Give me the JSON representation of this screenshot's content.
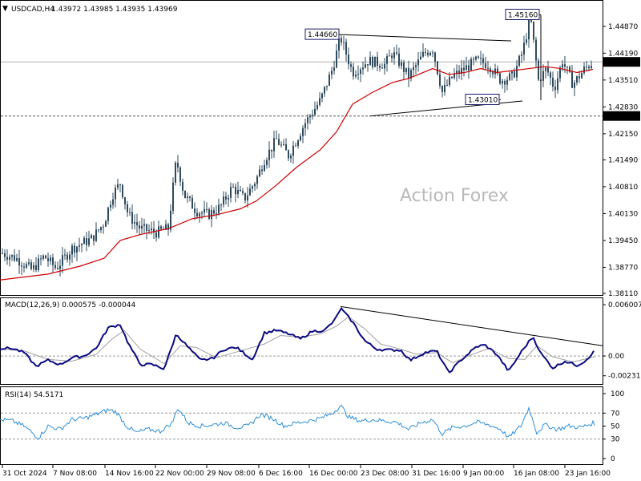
{
  "header": {
    "symbol": "USDCAD,H4",
    "ohlc": "1.43972 1.43985 1.43935 1.43969"
  },
  "watermark": "Action Forex",
  "colors": {
    "candle": "#2e4a5c",
    "ma": "#cc0000",
    "macd": "#0a0a80",
    "signal": "#a0a0a0",
    "rsi": "#2d8fd8",
    "grid": "#9a9a9a",
    "level_line": "#555555"
  },
  "chart_data": [
    {
      "type": "candlestick",
      "panel": "price",
      "title": "USDCAD,H4",
      "ylim": [
        1.3811,
        1.4515
      ],
      "y_ticks": [
        "1.44870",
        "1.44190",
        "1.43510",
        "1.42830",
        "1.42150",
        "1.41490",
        "1.40810",
        "1.40130",
        "1.39450",
        "1.38770",
        "1.38110"
      ],
      "x_ticks": [
        "31 Oct 2024",
        "7 Nov 08:00",
        "14 Nov 16:00",
        "22 Nov 00:00",
        "29 Nov 08:00",
        "6 Dec 16:00",
        "16 Dec 00:00",
        "23 Dec 08:00",
        "31 Dec 16:00",
        "9 Jan 00:00",
        "16 Jan 08:00",
        "23 Jan 16:00"
      ],
      "price_path": [
        [
          0,
          1.3915
        ],
        [
          20,
          1.39
        ],
        [
          40,
          1.387
        ],
        [
          55,
          1.3905
        ],
        [
          70,
          1.3875
        ],
        [
          90,
          1.3925
        ],
        [
          115,
          1.395
        ],
        [
          130,
          1.399
        ],
        [
          140,
          1.406
        ],
        [
          150,
          1.409
        ],
        [
          160,
          1.401
        ],
        [
          175,
          1.3975
        ],
        [
          195,
          1.3965
        ],
        [
          210,
          1.3975
        ],
        [
          220,
          1.415
        ],
        [
          230,
          1.406
        ],
        [
          245,
          1.402
        ],
        [
          260,
          1.401
        ],
        [
          275,
          1.403
        ],
        [
          290,
          1.408
        ],
        [
          305,
          1.405
        ],
        [
          320,
          1.41
        ],
        [
          330,
          1.415
        ],
        [
          345,
          1.42
        ],
        [
          360,
          1.416
        ],
        [
          380,
          1.424
        ],
        [
          400,
          1.43
        ],
        [
          415,
          1.438
        ],
        [
          425,
          1.446
        ],
        [
          440,
          1.437
        ],
        [
          460,
          1.44
        ],
        [
          480,
          1.439
        ],
        [
          490,
          1.442
        ],
        [
          510,
          1.436
        ],
        [
          530,
          1.442
        ],
        [
          540,
          1.443
        ],
        [
          552,
          1.432
        ],
        [
          565,
          1.436
        ],
        [
          580,
          1.438
        ],
        [
          595,
          1.44
        ],
        [
          610,
          1.439
        ],
        [
          625,
          1.435
        ],
        [
          640,
          1.436
        ],
        [
          652,
          1.442
        ],
        [
          662,
          1.451
        ],
        [
          672,
          1.435
        ],
        [
          682,
          1.438
        ],
        [
          692,
          1.433
        ],
        [
          702,
          1.44
        ],
        [
          715,
          1.434
        ],
        [
          730,
          1.438
        ],
        [
          740,
          1.4397
        ]
      ],
      "moving_average_path": [
        [
          0,
          1.3845
        ],
        [
          60,
          1.386
        ],
        [
          100,
          1.388
        ],
        [
          130,
          1.39
        ],
        [
          150,
          1.3945
        ],
        [
          175,
          1.396
        ],
        [
          210,
          1.3975
        ],
        [
          240,
          1.4
        ],
        [
          270,
          1.401
        ],
        [
          300,
          1.4025
        ],
        [
          320,
          1.4045
        ],
        [
          345,
          1.4085
        ],
        [
          370,
          1.413
        ],
        [
          400,
          1.4175
        ],
        [
          420,
          1.422
        ],
        [
          440,
          1.429
        ],
        [
          465,
          1.432
        ],
        [
          490,
          1.4345
        ],
        [
          510,
          1.4355
        ],
        [
          540,
          1.438
        ],
        [
          560,
          1.4365
        ],
        [
          580,
          1.437
        ],
        [
          600,
          1.438
        ],
        [
          620,
          1.437
        ],
        [
          640,
          1.4375
        ],
        [
          660,
          1.438
        ],
        [
          680,
          1.4385
        ],
        [
          700,
          1.438
        ],
        [
          720,
          1.437
        ],
        [
          740,
          1.4378
        ]
      ],
      "levels": [
        {
          "label": "1.44660",
          "value": 1.4466,
          "x": 425
        },
        {
          "label": "1.45160",
          "value": 1.4516,
          "x": 675
        },
        {
          "label": "1.43010",
          "value": 1.4301,
          "x": 625
        }
      ],
      "current_price": {
        "label": "1.43969",
        "value": 1.43969
      },
      "horizontal_level": {
        "label": "1.42600",
        "value": 1.426
      },
      "trendlines": [
        {
          "from": [
            425,
            1.4466
          ],
          "to": [
            638,
            1.445
          ]
        },
        {
          "from": [
            462,
            1.426
          ],
          "to": [
            652,
            1.4298
          ]
        }
      ]
    },
    {
      "type": "line",
      "panel": "macd",
      "title": "MACD(12,26,9) 0.000575 -0.000044",
      "ylim": [
        -0.003,
        0.0063
      ],
      "y_ticks": [
        {
          "label": "0.006007",
          "value": 0.006007
        },
        {
          "label": "0.00",
          "value": 0.0
        },
        {
          "label": "-0.002318",
          "value": -0.002318
        }
      ],
      "series": [
        {
          "name": "MACD",
          "path": [
            [
              0,
              0.0009
            ],
            [
              15,
              0.0009
            ],
            [
              30,
              0.0004
            ],
            [
              45,
              -0.0012
            ],
            [
              60,
              -0.0005
            ],
            [
              75,
              -0.001
            ],
            [
              90,
              -0.0002
            ],
            [
              105,
              0.0
            ],
            [
              120,
              0.0009
            ],
            [
              135,
              0.0033
            ],
            [
              150,
              0.0037
            ],
            [
              160,
              0.0015
            ],
            [
              175,
              -0.001
            ],
            [
              190,
              -0.001
            ],
            [
              205,
              -0.0015
            ],
            [
              220,
              0.0026
            ],
            [
              235,
              0.001
            ],
            [
              250,
              -0.0005
            ],
            [
              265,
              -0.0003
            ],
            [
              280,
              0.0008
            ],
            [
              295,
              0.001
            ],
            [
              315,
              -0.0004
            ],
            [
              330,
              0.0027
            ],
            [
              345,
              0.003
            ],
            [
              360,
              0.0026
            ],
            [
              375,
              0.002
            ],
            [
              390,
              0.0029
            ],
            [
              405,
              0.003
            ],
            [
              418,
              0.0042
            ],
            [
              425,
              0.0056
            ],
            [
              440,
              0.004
            ],
            [
              455,
              0.0018
            ],
            [
              470,
              0.0008
            ],
            [
              485,
              0.0007
            ],
            [
              500,
              0.0007
            ],
            [
              512,
              -0.0005
            ],
            [
              530,
              0.0004
            ],
            [
              545,
              0.0006
            ],
            [
              560,
              -0.002
            ],
            [
              575,
              -0.0005
            ],
            [
              595,
              0.0011
            ],
            [
              605,
              0.0013
            ],
            [
              620,
              0.0002
            ],
            [
              635,
              -0.0018
            ],
            [
              650,
              0.0004
            ],
            [
              665,
              0.0023
            ],
            [
              675,
              0.0003
            ],
            [
              690,
              -0.0014
            ],
            [
              705,
              -0.0006
            ],
            [
              720,
              -0.0011
            ],
            [
              730,
              -0.0006
            ],
            [
              742,
              0.0006
            ]
          ]
        },
        {
          "name": "Signal",
          "path": [
            [
              0,
              0.0008
            ],
            [
              30,
              0.0006
            ],
            [
              60,
              -0.0004
            ],
            [
              90,
              -0.0006
            ],
            [
              120,
              0.0002
            ],
            [
              140,
              0.002
            ],
            [
              155,
              0.003
            ],
            [
              175,
              0.0008
            ],
            [
              205,
              -0.0009
            ],
            [
              225,
              0.0012
            ],
            [
              245,
              0.001
            ],
            [
              270,
              -0.0002
            ],
            [
              300,
              0.0006
            ],
            [
              330,
              0.0014
            ],
            [
              350,
              0.0024
            ],
            [
              375,
              0.0022
            ],
            [
              400,
              0.0026
            ],
            [
              420,
              0.0035
            ],
            [
              435,
              0.0046
            ],
            [
              455,
              0.0032
            ],
            [
              475,
              0.0014
            ],
            [
              500,
              0.0008
            ],
            [
              520,
              0.0002
            ],
            [
              545,
              0.0004
            ],
            [
              565,
              -0.0008
            ],
            [
              590,
              0.0002
            ],
            [
              610,
              0.0009
            ],
            [
              635,
              -0.0003
            ],
            [
              655,
              -0.0004
            ],
            [
              670,
              0.0012
            ],
            [
              690,
              -0.0001
            ],
            [
              715,
              -0.0007
            ],
            [
              742,
              -0.0001
            ]
          ]
        }
      ],
      "trendline": {
        "from": [
          425,
          0.0058
        ],
        "to": [
          752,
          0.0012
        ]
      }
    },
    {
      "type": "line",
      "panel": "rsi",
      "title": "RSI(14) 54.5171",
      "ylim": [
        0,
        100
      ],
      "y_ticks": [
        100,
        70,
        50,
        30,
        0
      ],
      "reference_lines": [
        70,
        30
      ],
      "series": [
        {
          "name": "RSI",
          "path": [
            [
              0,
              60
            ],
            [
              15,
              58
            ],
            [
              30,
              50
            ],
            [
              48,
              32
            ],
            [
              60,
              50
            ],
            [
              75,
              45
            ],
            [
              90,
              60
            ],
            [
              105,
              62
            ],
            [
              120,
              68
            ],
            [
              135,
              75
            ],
            [
              145,
              72
            ],
            [
              158,
              50
            ],
            [
              170,
              40
            ],
            [
              185,
              45
            ],
            [
              200,
              42
            ],
            [
              215,
              55
            ],
            [
              222,
              78
            ],
            [
              235,
              55
            ],
            [
              250,
              50
            ],
            [
              265,
              52
            ],
            [
              280,
              55
            ],
            [
              295,
              48
            ],
            [
              310,
              50
            ],
            [
              325,
              68
            ],
            [
              340,
              62
            ],
            [
              355,
              50
            ],
            [
              370,
              55
            ],
            [
              385,
              58
            ],
            [
              400,
              62
            ],
            [
              415,
              70
            ],
            [
              425,
              82
            ],
            [
              435,
              64
            ],
            [
              450,
              58
            ],
            [
              465,
              60
            ],
            [
              480,
              58
            ],
            [
              495,
              56
            ],
            [
              510,
              45
            ],
            [
              525,
              55
            ],
            [
              540,
              60
            ],
            [
              552,
              38
            ],
            [
              565,
              48
            ],
            [
              580,
              50
            ],
            [
              595,
              56
            ],
            [
              610,
              52
            ],
            [
              625,
              45
            ],
            [
              635,
              32
            ],
            [
              650,
              50
            ],
            [
              660,
              78
            ],
            [
              670,
              40
            ],
            [
              680,
              52
            ],
            [
              695,
              45
            ],
            [
              710,
              50
            ],
            [
              725,
              48
            ],
            [
              740,
              54.5
            ]
          ]
        }
      ]
    }
  ]
}
